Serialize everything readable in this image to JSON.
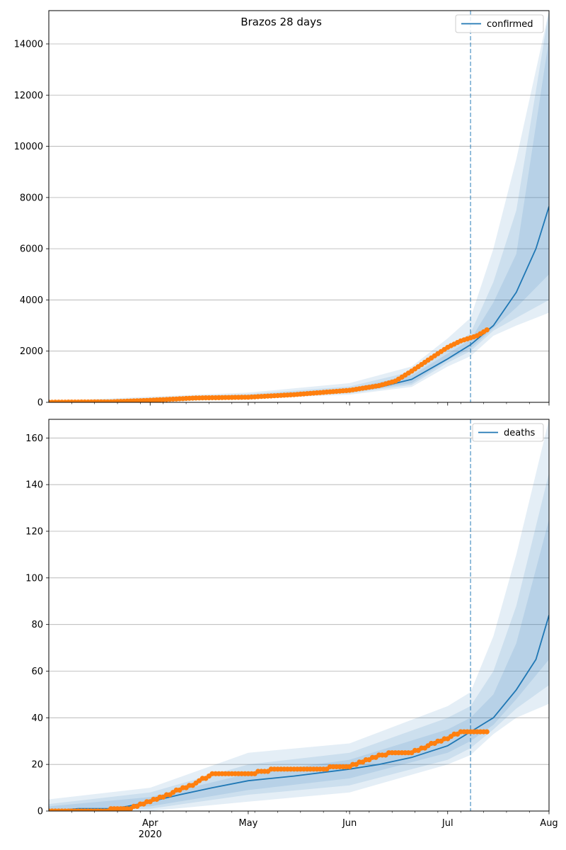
{
  "chart_data": [
    {
      "type": "line",
      "title": "Brazos 28 days",
      "xlabel": "",
      "ylabel": "",
      "x_range": [
        "2020-03-01",
        "2020-08-01"
      ],
      "ylim": [
        0,
        15300
      ],
      "yticks": [
        0,
        2000,
        4000,
        6000,
        8000,
        10000,
        12000,
        14000
      ],
      "xticks": [],
      "grid": "y",
      "legend": {
        "position": "top-right",
        "entries": [
          "confirmed"
        ]
      },
      "vline": "2020-07-08",
      "colors": {
        "model": "#1f77b4",
        "observed": "#ff7f0e",
        "band": "#1f77b4"
      },
      "series": [
        {
          "name": "confirmed",
          "kind": "line",
          "x": [
            "2020-03-01",
            "2020-03-20",
            "2020-04-01",
            "2020-04-15",
            "2020-05-01",
            "2020-05-15",
            "2020-06-01",
            "2020-06-10",
            "2020-06-20",
            "2020-07-01",
            "2020-07-08",
            "2020-07-15",
            "2020-07-22",
            "2020-07-28",
            "2020-08-01"
          ],
          "y": [
            0,
            10,
            90,
            180,
            240,
            300,
            440,
            590,
            900,
            1700,
            2250,
            3000,
            4300,
            6000,
            7650
          ]
        },
        {
          "kind": "observed",
          "x": [
            "2020-03-01",
            "2020-03-20",
            "2020-04-01",
            "2020-04-15",
            "2020-05-01",
            "2020-05-15",
            "2020-06-01",
            "2020-06-10",
            "2020-06-15",
            "2020-06-20",
            "2020-06-25",
            "2020-07-01",
            "2020-07-05",
            "2020-07-10",
            "2020-07-13"
          ],
          "y": [
            5,
            20,
            80,
            170,
            200,
            300,
            470,
            650,
            830,
            1220,
            1650,
            2150,
            2400,
            2600,
            2830
          ]
        }
      ],
      "bands": [
        {
          "x": [
            "2020-03-01",
            "2020-04-01",
            "2020-05-01",
            "2020-06-01",
            "2020-06-20",
            "2020-07-01",
            "2020-07-08",
            "2020-07-15",
            "2020-07-22",
            "2020-08-01"
          ],
          "low": [
            0,
            40,
            150,
            300,
            600,
            1400,
            1800,
            2600,
            3000,
            3500
          ],
          "high": [
            40,
            220,
            380,
            750,
            1400,
            2500,
            3300,
            6000,
            9500,
            15300
          ]
        },
        {
          "x": [
            "2020-03-01",
            "2020-04-01",
            "2020-05-01",
            "2020-06-01",
            "2020-06-20",
            "2020-07-01",
            "2020-07-08",
            "2020-07-15",
            "2020-07-22",
            "2020-08-01"
          ],
          "low": [
            0,
            55,
            180,
            350,
            680,
            1550,
            2000,
            2800,
            3300,
            4000
          ],
          "high": [
            25,
            170,
            320,
            620,
            1200,
            2100,
            2700,
            4700,
            7500,
            15300
          ]
        },
        {
          "x": [
            "2020-03-01",
            "2020-04-01",
            "2020-05-01",
            "2020-06-01",
            "2020-06-20",
            "2020-07-01",
            "2020-07-08",
            "2020-07-15",
            "2020-07-22",
            "2020-08-01"
          ],
          "low": [
            0,
            70,
            200,
            390,
            750,
            1650,
            2100,
            2900,
            3700,
            5000
          ],
          "high": [
            15,
            130,
            280,
            540,
            1050,
            1900,
            2450,
            3900,
            5800,
            14200
          ]
        }
      ]
    },
    {
      "type": "line",
      "title": "",
      "xlabel": "",
      "ylabel": "",
      "x_range": [
        "2020-03-01",
        "2020-08-01"
      ],
      "ylim": [
        0,
        168
      ],
      "yticks": [
        0,
        20,
        40,
        60,
        80,
        100,
        120,
        140,
        160
      ],
      "xticks": [
        {
          "x": "2020-04-01",
          "label": "Apr",
          "sublabel": "2020"
        },
        {
          "x": "2020-05-01",
          "label": "May"
        },
        {
          "x": "2020-06-01",
          "label": "Jun"
        },
        {
          "x": "2020-07-01",
          "label": "Jul"
        },
        {
          "x": "2020-08-01",
          "label": "Aug"
        }
      ],
      "grid": "y",
      "legend": {
        "position": "top-right",
        "entries": [
          "deaths"
        ]
      },
      "vline": "2020-07-08",
      "colors": {
        "model": "#1f77b4",
        "observed": "#ff7f0e",
        "band": "#1f77b4"
      },
      "series": [
        {
          "name": "deaths",
          "kind": "line",
          "x": [
            "2020-03-01",
            "2020-03-10",
            "2020-03-20",
            "2020-03-25",
            "2020-04-01",
            "2020-04-10",
            "2020-04-20",
            "2020-05-01",
            "2020-05-15",
            "2020-06-01",
            "2020-06-10",
            "2020-06-20",
            "2020-07-01",
            "2020-07-08",
            "2020-07-15",
            "2020-07-22",
            "2020-07-28",
            "2020-08-01"
          ],
          "y": [
            0,
            1,
            1,
            2,
            4,
            7,
            10,
            13,
            15,
            18,
            20,
            23,
            28,
            34,
            40,
            52,
            65,
            84
          ]
        },
        {
          "kind": "observed",
          "x": [
            "2020-03-01",
            "2020-03-15",
            "2020-03-25",
            "2020-04-01",
            "2020-04-08",
            "2020-04-15",
            "2020-04-20",
            "2020-05-01",
            "2020-05-10",
            "2020-05-20",
            "2020-06-01",
            "2020-06-05",
            "2020-06-10",
            "2020-06-15",
            "2020-06-20",
            "2020-06-25",
            "2020-07-01",
            "2020-07-05",
            "2020-07-13"
          ],
          "y": [
            0,
            0,
            1,
            4,
            8,
            12,
            16,
            16,
            18,
            18,
            19,
            21,
            24,
            25,
            25,
            28,
            31,
            34,
            34
          ]
        }
      ],
      "bands": [
        {
          "x": [
            "2020-03-01",
            "2020-04-01",
            "2020-05-01",
            "2020-06-01",
            "2020-07-01",
            "2020-07-08",
            "2020-07-15",
            "2020-07-22",
            "2020-08-01"
          ],
          "low": [
            0,
            0,
            4,
            8,
            20,
            24,
            33,
            40,
            46
          ],
          "high": [
            5,
            10,
            25,
            29,
            45,
            51,
            75,
            110,
            168
          ]
        },
        {
          "x": [
            "2020-03-01",
            "2020-04-01",
            "2020-05-01",
            "2020-06-01",
            "2020-07-01",
            "2020-07-08",
            "2020-07-15",
            "2020-07-22",
            "2020-08-01"
          ],
          "low": [
            0,
            1,
            7,
            11,
            22,
            27,
            35,
            44,
            54
          ],
          "high": [
            3,
            8,
            20,
            25,
            40,
            45,
            60,
            88,
            145
          ]
        },
        {
          "x": [
            "2020-03-01",
            "2020-04-01",
            "2020-05-01",
            "2020-06-01",
            "2020-07-01",
            "2020-07-08",
            "2020-07-15",
            "2020-07-22",
            "2020-08-01"
          ],
          "low": [
            0,
            2,
            9,
            14,
            25,
            30,
            37,
            48,
            65
          ],
          "high": [
            2,
            6,
            16,
            22,
            35,
            40,
            50,
            72,
            125
          ]
        }
      ]
    }
  ]
}
